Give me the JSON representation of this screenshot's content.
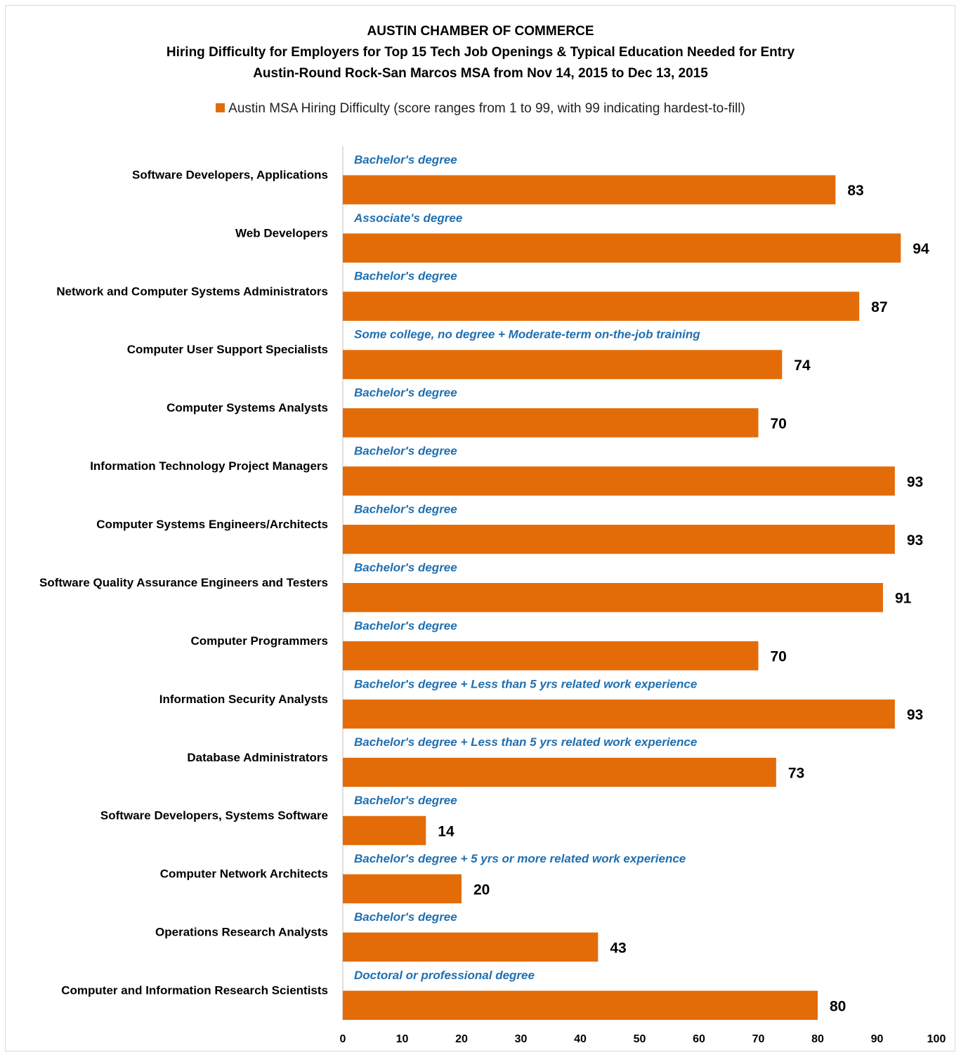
{
  "chart_data": {
    "type": "bar",
    "orientation": "horizontal",
    "title_lines": [
      "AUSTIN CHAMBER OF COMMERCE",
      "Hiring Difficulty for Employers for Top 15 Tech Job Openings & Typical Education Needed for Entry",
      "Austin-Round Rock-San Marcos MSA from Nov 14, 2015 to Dec 13, 2015"
    ],
    "legend": {
      "placement": "top",
      "entries": [
        "Austin MSA Hiring Difficulty (score ranges from 1 to 99, with 99 indicating hardest-to-fill)"
      ]
    },
    "bar_color": "#e36c09",
    "annotation_color": "#1f6fb0",
    "xlim": [
      0,
      100
    ],
    "x_ticks": [
      "0",
      "10",
      "20",
      "30",
      "40",
      "50",
      "60",
      "70",
      "80",
      "90",
      "100"
    ],
    "grid": false,
    "categories": [
      "Software Developers, Applications",
      "Web Developers",
      "Network and Computer Systems Administrators",
      "Computer User Support Specialists",
      "Computer Systems Analysts",
      "Information Technology Project Managers",
      "Computer Systems Engineers/Architects",
      "Software Quality Assurance Engineers and Testers",
      "Computer Programmers",
      "Information Security Analysts",
      "Database Administrators",
      "Software Developers, Systems Software",
      "Computer Network Architects",
      "Operations Research Analysts",
      "Computer and Information Research Scientists"
    ],
    "values": [
      83,
      94,
      87,
      74,
      70,
      93,
      93,
      91,
      70,
      93,
      73,
      14,
      20,
      43,
      80
    ],
    "education": [
      "Bachelor's degree",
      "Associate's degree",
      "Bachelor's degree",
      "Some college, no degree + Moderate-term on-the-job training",
      "Bachelor's degree",
      "Bachelor's degree",
      "Bachelor's degree",
      "Bachelor's degree",
      "Bachelor's degree",
      "Bachelor's degree + Less than 5 yrs related work experience",
      "Bachelor's degree + Less than 5 yrs related work experience",
      "Bachelor's degree",
      "Bachelor's degree + 5 yrs or more related work experience",
      "Bachelor's degree",
      "Doctoral or professional degree"
    ]
  }
}
